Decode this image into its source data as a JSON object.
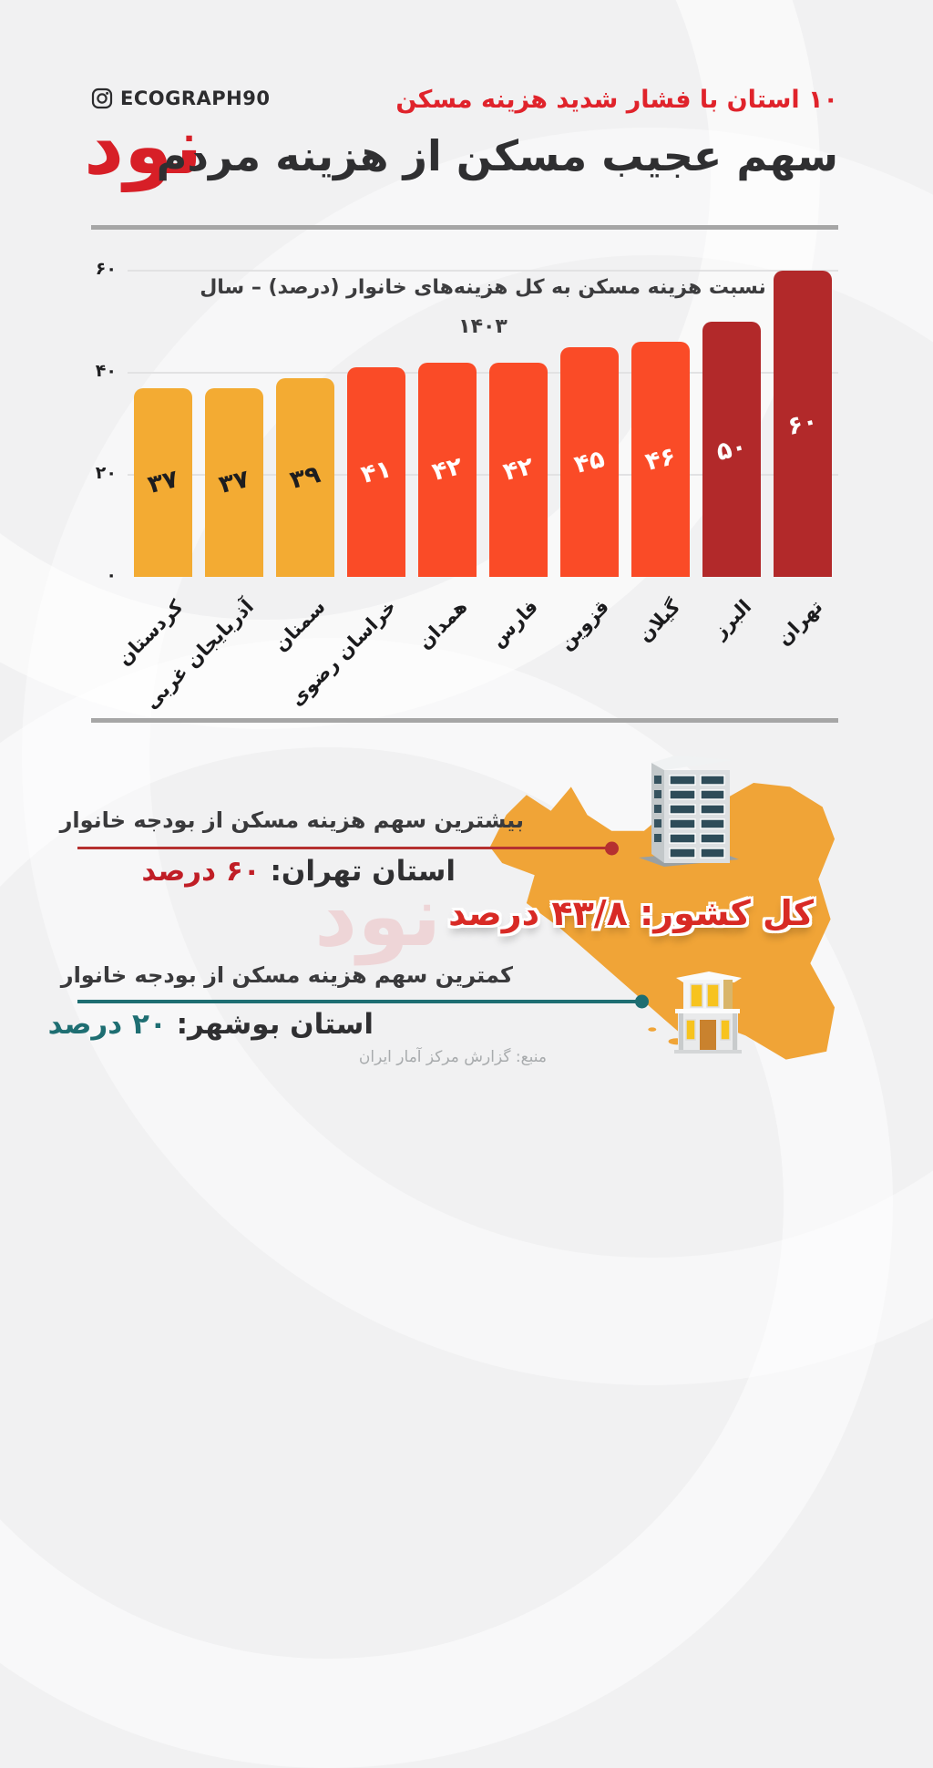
{
  "brand": {
    "instagram_handle": "ECOGRAPH90",
    "logo_text": "نود"
  },
  "header": {
    "kicker": "۱۰ استان با فشار شدید هزینه مسکن",
    "title": "سهم عجیب مسکن از هزینه مردم"
  },
  "chart_data": {
    "type": "bar",
    "title": "نسبت هزینه مسکن به کل هزینه‌های خانوار (درصد) – سال ۱۴۰۳",
    "title_line1": "نسبت هزینه مسکن به کل هزینه‌های خانوار (درصد) – سال",
    "title_line2": "۱۴۰۳",
    "categories": [
      "کردستان",
      "آذربایجان غربی",
      "سمنان",
      "خراسان رضوی",
      "همدان",
      "فارس",
      "قزوین",
      "گیلان",
      "البرز",
      "تهران"
    ],
    "values": [
      37,
      37,
      39,
      41,
      42,
      42,
      45,
      46,
      50,
      60
    ],
    "value_labels": [
      "۳۷",
      "۳۷",
      "۳۹",
      "۴۱",
      "۴۲",
      "۴۲",
      "۴۵",
      "۴۶",
      "۵۰",
      "۶۰"
    ],
    "bar_colors": [
      "#f3ab33",
      "#f3ab33",
      "#f3ab33",
      "#fa4b27",
      "#fa4b27",
      "#fa4b27",
      "#fa4b27",
      "#fa4b27",
      "#b2292a",
      "#b2292a"
    ],
    "value_label_colors": [
      "#1d1d1f",
      "#1d1d1f",
      "#1d1d1f",
      "#ffffff",
      "#ffffff",
      "#ffffff",
      "#ffffff",
      "#ffffff",
      "#ffffff",
      "#ffffff"
    ],
    "y_ticks": [
      {
        "value": 60,
        "label": "۶۰"
      },
      {
        "value": 40,
        "label": "۴۰"
      },
      {
        "value": 20,
        "label": "۲۰"
      },
      {
        "value": 0,
        "label": "۰"
      }
    ],
    "ylim": [
      0,
      60
    ],
    "grid": true,
    "legend_position": "none",
    "xlabel": "",
    "ylabel": ""
  },
  "callouts": {
    "highest": {
      "label": "بیشترین سهم هزینه مسکن از بودجه خانوار",
      "province": "استان تهران:",
      "value": "۶۰ درصد",
      "accent_color": "#c01e26",
      "line_color": "#b53030"
    },
    "country": {
      "text": "کل کشور: ۴۳/۸ درصد",
      "color": "#d82a25"
    },
    "lowest": {
      "label": "کمترین سهم هزینه مسکن از بودجه خانوار",
      "province": "استان بوشهر:",
      "value": "۲۰ درصد",
      "accent_color": "#1e6e72",
      "line_color": "#1e6e72"
    }
  },
  "map": {
    "region": "iran",
    "fill": "#f0a437"
  },
  "icons": {
    "instagram": "instagram-icon",
    "building": "building-icon",
    "house": "house-icon"
  },
  "source": "منبع: گزارش مرکز آمار ایران",
  "watermark": "نود"
}
